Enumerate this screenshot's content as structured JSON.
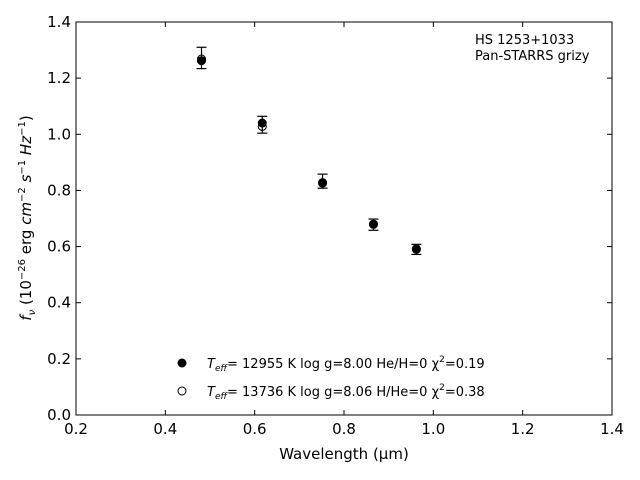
{
  "chart_data": {
    "type": "scatter",
    "xlabel": "Wavelength (μm)",
    "ylabel": "f_ν (10^−26 erg cm^−2 s^−1 Hz^−1)",
    "xlim": [
      0.2,
      1.4
    ],
    "ylim": [
      0.0,
      1.4
    ],
    "x_ticks": [
      "0.2",
      "0.4",
      "0.6",
      "0.8",
      "1.0",
      "1.2",
      "1.4"
    ],
    "y_ticks": [
      "0.0",
      "0.2",
      "0.4",
      "0.6",
      "0.8",
      "1.0",
      "1.2",
      "1.4"
    ],
    "grid": false,
    "annotation": [
      "HS 1253+1033",
      "Pan-STARRS grizy"
    ],
    "legend_position": "bottom-center",
    "observed": {
      "x": [
        0.481,
        0.617,
        0.752,
        0.866,
        0.962
      ],
      "y": [
        1.272,
        1.034,
        0.833,
        0.678,
        0.59
      ],
      "err": [
        0.038,
        0.03,
        0.025,
        0.02,
        0.018
      ]
    },
    "series": [
      {
        "marker": "filled-circle",
        "legend_parts": [
          "T",
          "eff",
          "= 12955 K  log g=8.00  He/H=0  χ",
          "2",
          "=0.19"
        ],
        "x": [
          0.481,
          0.617,
          0.752,
          0.866,
          0.962
        ],
        "y": [
          1.262,
          1.04,
          0.826,
          0.679,
          0.59
        ]
      },
      {
        "marker": "open-circle",
        "legend_parts": [
          "T",
          "eff",
          "= 13736 K  log g=8.06  H/He=0  χ",
          "2",
          "=0.38"
        ],
        "x": [
          0.481,
          0.617,
          0.752,
          0.866,
          0.962
        ],
        "y": [
          1.268,
          1.028,
          0.828,
          0.68,
          0.592
        ]
      }
    ]
  }
}
